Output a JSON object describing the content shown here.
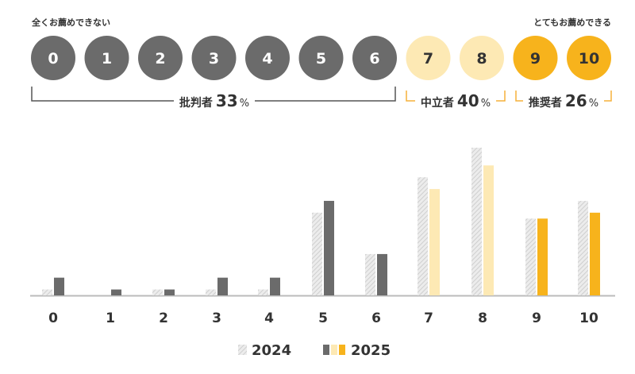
{
  "scale_ends": {
    "left": "全くお薦めできない",
    "right": "とてもお薦めできる"
  },
  "scores": [
    "0",
    "1",
    "2",
    "3",
    "4",
    "5",
    "6",
    "7",
    "8",
    "9",
    "10"
  ],
  "groups": [
    {
      "key": "detractor",
      "label": "批判者",
      "value": "33",
      "unit": "%"
    },
    {
      "key": "passive",
      "label": "中立者",
      "value": "40",
      "unit": "%"
    },
    {
      "key": "promoter",
      "label": "推奨者",
      "value": "26",
      "unit": "%"
    }
  ],
  "colors": {
    "detractor": "#6b6b6b",
    "passive": "#fde9b4",
    "promoter": "#f7b31c",
    "bracket_detractor": "#555555",
    "bracket_other": "#f5b13a",
    "hatch": "#d4d4d4",
    "baseline": "#bbbbbb"
  },
  "chart_data": {
    "type": "bar",
    "categories": [
      "0",
      "1",
      "2",
      "3",
      "4",
      "5",
      "6",
      "7",
      "8",
      "9",
      "10"
    ],
    "series": [
      {
        "name": "2024",
        "values": [
          0.5,
          0,
          0.5,
          0.5,
          0.5,
          7,
          3.5,
          10,
          12.5,
          6.5,
          8
        ]
      },
      {
        "name": "2025",
        "values": [
          1.5,
          0.5,
          0.5,
          1.5,
          1.5,
          8,
          3.5,
          9,
          11,
          6.5,
          7
        ]
      }
    ],
    "ylim": [
      0,
      13
    ],
    "grid": false,
    "legend_position": "bottom-center"
  }
}
